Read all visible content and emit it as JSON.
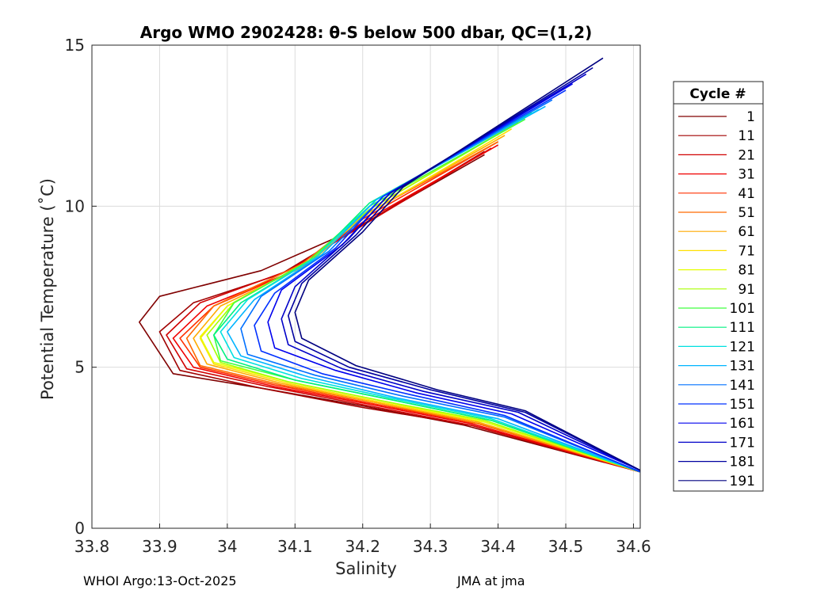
{
  "chart_data": {
    "type": "line",
    "title": "Argo WMO 2902428: θ-S below 500 dbar,  QC=(1,2)",
    "xlabel": "Salinity",
    "ylabel": "Potential Temperature (˚C)",
    "xlim": [
      33.8,
      34.61
    ],
    "ylim": [
      0,
      15
    ],
    "xticks": [
      33.8,
      33.9,
      34,
      34.1,
      34.2,
      34.3,
      34.4,
      34.5,
      34.6
    ],
    "xtick_labels": [
      "33.8",
      "33.9",
      "34",
      "34.1",
      "34.2",
      "34.3",
      "34.4",
      "34.5",
      "34.6"
    ],
    "yticks": [
      0,
      5,
      10,
      15
    ],
    "ytick_labels": [
      "0",
      "5",
      "10",
      "15"
    ],
    "grid": true,
    "legend_title": "Cycle #",
    "legend_position": "right-outside",
    "series": [
      {
        "name": "1",
        "color": "#800000",
        "salinity": [
          34.61,
          34.35,
          34.2,
          34.05,
          33.92,
          33.87,
          33.9,
          34.05,
          34.18,
          34.38
        ],
        "theta": [
          1.75,
          3.2,
          3.8,
          4.35,
          4.8,
          6.4,
          7.2,
          8.0,
          9.2,
          11.6
        ]
      },
      {
        "name": "11",
        "color": "#a00000",
        "salinity": [
          34.61,
          34.36,
          34.2,
          34.05,
          33.93,
          33.9,
          33.95,
          34.08,
          34.19,
          34.38
        ],
        "theta": [
          1.75,
          3.2,
          3.75,
          4.35,
          4.9,
          6.1,
          7.0,
          7.9,
          9.3,
          11.7
        ]
      },
      {
        "name": "21",
        "color": "#d00000",
        "salinity": [
          34.61,
          34.36,
          34.21,
          34.06,
          33.94,
          33.91,
          33.96,
          34.09,
          34.2,
          34.39
        ],
        "theta": [
          1.75,
          3.2,
          3.8,
          4.4,
          4.95,
          6.0,
          7.0,
          8.0,
          9.4,
          11.8
        ]
      },
      {
        "name": "31",
        "color": "#f00000",
        "salinity": [
          34.61,
          34.36,
          34.21,
          34.07,
          33.95,
          33.92,
          33.97,
          34.1,
          34.2,
          34.4
        ],
        "theta": [
          1.75,
          3.25,
          3.85,
          4.4,
          5.0,
          5.9,
          6.9,
          8.0,
          9.5,
          11.9
        ]
      },
      {
        "name": "41",
        "color": "#ff3000",
        "salinity": [
          34.61,
          34.37,
          34.22,
          34.07,
          33.96,
          33.93,
          33.98,
          34.11,
          34.2,
          34.4
        ],
        "theta": [
          1.75,
          3.25,
          3.85,
          4.45,
          5.0,
          5.9,
          6.9,
          8.1,
          9.6,
          12.0
        ]
      },
      {
        "name": "51",
        "color": "#ff6a00",
        "salinity": [
          34.61,
          34.37,
          34.22,
          34.08,
          33.96,
          33.94,
          33.98,
          34.11,
          34.2,
          34.4
        ],
        "theta": [
          1.75,
          3.25,
          3.9,
          4.45,
          5.05,
          5.9,
          6.9,
          8.2,
          9.7,
          12.0
        ]
      },
      {
        "name": "61",
        "color": "#ffaa00",
        "salinity": [
          34.61,
          34.37,
          34.22,
          34.08,
          33.97,
          33.95,
          33.99,
          34.12,
          34.2,
          34.41
        ],
        "theta": [
          1.75,
          3.3,
          3.9,
          4.5,
          5.1,
          5.9,
          6.9,
          8.2,
          9.7,
          12.2
        ]
      },
      {
        "name": "71",
        "color": "#ffdf00",
        "salinity": [
          34.61,
          34.38,
          34.23,
          34.09,
          33.98,
          33.96,
          34.0,
          34.12,
          34.21,
          34.42
        ],
        "theta": [
          1.75,
          3.3,
          3.9,
          4.5,
          5.1,
          5.9,
          6.9,
          8.3,
          9.8,
          12.4
        ]
      },
      {
        "name": "81",
        "color": "#e6ff00",
        "salinity": [
          34.61,
          34.38,
          34.23,
          34.09,
          33.98,
          33.96,
          34.0,
          34.12,
          34.21,
          34.42
        ],
        "theta": [
          1.75,
          3.3,
          3.95,
          4.55,
          5.15,
          5.95,
          6.9,
          8.3,
          9.9,
          12.5
        ]
      },
      {
        "name": "91",
        "color": "#a8ff00",
        "salinity": [
          34.61,
          34.38,
          34.23,
          34.09,
          33.99,
          33.97,
          34.01,
          34.12,
          34.21,
          34.43
        ],
        "theta": [
          1.75,
          3.35,
          3.95,
          4.55,
          5.15,
          6.0,
          7.0,
          8.3,
          9.9,
          12.6
        ]
      },
      {
        "name": "101",
        "color": "#40ff40",
        "salinity": [
          34.61,
          34.39,
          34.24,
          34.1,
          33.99,
          33.98,
          34.01,
          34.12,
          34.21,
          34.44
        ],
        "theta": [
          1.75,
          3.35,
          4.0,
          4.6,
          5.2,
          6.0,
          7.0,
          8.3,
          10.0,
          12.7
        ]
      },
      {
        "name": "111",
        "color": "#00f080",
        "salinity": [
          34.61,
          34.39,
          34.24,
          34.1,
          34.0,
          33.98,
          34.02,
          34.13,
          34.21,
          34.45
        ],
        "theta": [
          1.75,
          3.35,
          4.0,
          4.6,
          5.25,
          6.0,
          7.0,
          8.4,
          10.1,
          12.9
        ]
      },
      {
        "name": "121",
        "color": "#00e0e0",
        "salinity": [
          34.61,
          34.39,
          34.24,
          34.11,
          34.01,
          33.99,
          34.03,
          34.13,
          34.22,
          34.46
        ],
        "theta": [
          1.75,
          3.4,
          4.05,
          4.65,
          5.3,
          6.1,
          7.1,
          8.4,
          10.2,
          13.0
        ]
      },
      {
        "name": "131",
        "color": "#00b4ff",
        "salinity": [
          34.61,
          34.4,
          34.25,
          34.12,
          34.02,
          34.0,
          34.04,
          34.14,
          34.22,
          34.47
        ],
        "theta": [
          1.75,
          3.4,
          4.05,
          4.7,
          5.35,
          6.1,
          7.1,
          8.5,
          10.2,
          13.1
        ]
      },
      {
        "name": "141",
        "color": "#0070ff",
        "salinity": [
          34.61,
          34.41,
          34.26,
          34.13,
          34.03,
          34.02,
          34.05,
          34.15,
          34.23,
          34.48
        ],
        "theta": [
          1.75,
          3.45,
          4.1,
          4.75,
          5.4,
          6.2,
          7.2,
          8.6,
          10.3,
          13.3
        ]
      },
      {
        "name": "151",
        "color": "#0030ff",
        "salinity": [
          34.61,
          34.41,
          34.27,
          34.14,
          34.05,
          34.04,
          34.07,
          34.16,
          34.23,
          34.5
        ],
        "theta": [
          1.75,
          3.5,
          4.15,
          4.8,
          5.5,
          6.3,
          7.3,
          8.7,
          10.3,
          13.6
        ]
      },
      {
        "name": "161",
        "color": "#0000ee",
        "salinity": [
          34.61,
          34.42,
          34.28,
          34.16,
          34.07,
          34.06,
          34.08,
          34.17,
          34.24,
          34.51
        ],
        "theta": [
          1.8,
          3.55,
          4.2,
          4.9,
          5.6,
          6.4,
          7.4,
          8.8,
          10.4,
          13.8
        ]
      },
      {
        "name": "171",
        "color": "#0000c8",
        "salinity": [
          34.61,
          34.43,
          34.29,
          34.17,
          34.09,
          34.08,
          34.1,
          34.18,
          34.24,
          34.53
        ],
        "theta": [
          1.8,
          3.6,
          4.25,
          4.95,
          5.7,
          6.5,
          7.5,
          9.0,
          10.4,
          14.1
        ]
      },
      {
        "name": "181",
        "color": "#0000a0",
        "salinity": [
          34.61,
          34.44,
          34.3,
          34.18,
          34.1,
          34.09,
          34.11,
          34.19,
          34.25,
          34.54
        ],
        "theta": [
          1.8,
          3.6,
          4.3,
          5.0,
          5.8,
          6.6,
          7.6,
          9.1,
          10.5,
          14.3
        ]
      },
      {
        "name": "191",
        "color": "#000080",
        "salinity": [
          34.61,
          34.44,
          34.31,
          34.19,
          34.11,
          34.1,
          34.12,
          34.2,
          34.26,
          34.555
        ],
        "theta": [
          1.8,
          3.65,
          4.3,
          5.05,
          5.9,
          6.7,
          7.7,
          9.2,
          10.6,
          14.6
        ]
      }
    ]
  },
  "footer": {
    "left": "WHOI Argo:13-Oct-2025",
    "right": "JMA at jma"
  }
}
